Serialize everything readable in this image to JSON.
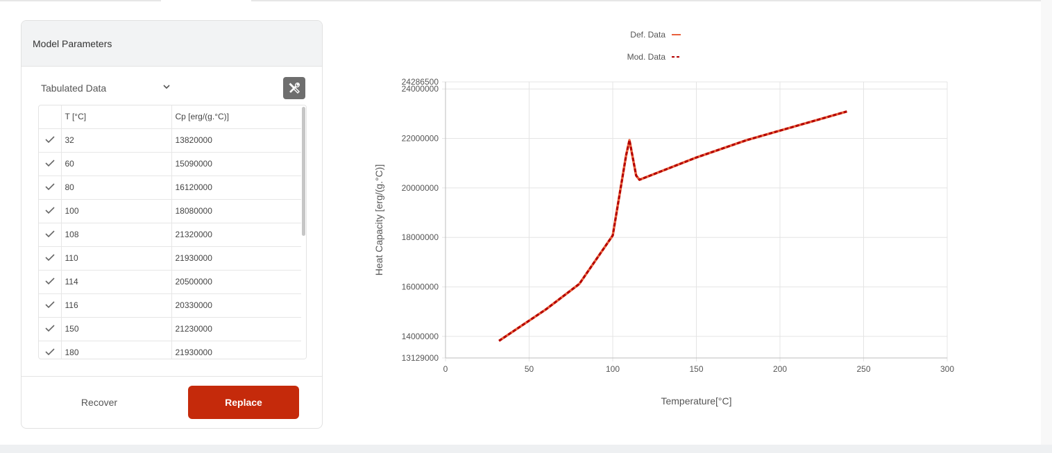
{
  "panel": {
    "title": "Model Parameters",
    "select_value": "Tabulated Data",
    "columns": [
      "T [°C]",
      "Cp [erg/(g.°C)]"
    ],
    "rows": [
      {
        "t": "32",
        "cp": "13820000"
      },
      {
        "t": "60",
        "cp": "15090000"
      },
      {
        "t": "80",
        "cp": "16120000"
      },
      {
        "t": "100",
        "cp": "18080000"
      },
      {
        "t": "108",
        "cp": "21320000"
      },
      {
        "t": "110",
        "cp": "21930000"
      },
      {
        "t": "114",
        "cp": "20500000"
      },
      {
        "t": "116",
        "cp": "20330000"
      },
      {
        "t": "150",
        "cp": "21230000"
      },
      {
        "t": "180",
        "cp": "21930000"
      }
    ],
    "recover_label": "Recover",
    "replace_label": "Replace",
    "accent_color": "#c52a0b"
  },
  "chart_data": {
    "type": "line",
    "xlabel": "Temperature[°C]",
    "ylabel": "Heat Capacity [erg/(g.°C)]",
    "xlim": [
      0,
      300
    ],
    "ylim": [
      13129000,
      24286500
    ],
    "x_ticks": [
      0,
      50,
      100,
      150,
      200,
      250,
      300
    ],
    "y_ticks": [
      13129000,
      14000000,
      16000000,
      18000000,
      20000000,
      22000000,
      24000000,
      24286500
    ],
    "grid": true,
    "legend_position": "top-center",
    "series": [
      {
        "name": "Def. Data",
        "style": "solid",
        "color": "#e8603c",
        "x": [
          32,
          60,
          80,
          100,
          108,
          110,
          114,
          116,
          150,
          180,
          240
        ],
        "y": [
          13820000,
          15090000,
          16120000,
          18080000,
          21320000,
          21930000,
          20500000,
          20330000,
          21230000,
          21930000,
          23090000
        ]
      },
      {
        "name": "Mod. Data",
        "style": "dashed",
        "color": "#b30000",
        "x": [
          32,
          60,
          80,
          100,
          108,
          110,
          114,
          116,
          150,
          180,
          240
        ],
        "y": [
          13820000,
          15090000,
          16120000,
          18080000,
          21320000,
          21930000,
          20500000,
          20330000,
          21230000,
          21930000,
          23090000
        ]
      }
    ]
  }
}
